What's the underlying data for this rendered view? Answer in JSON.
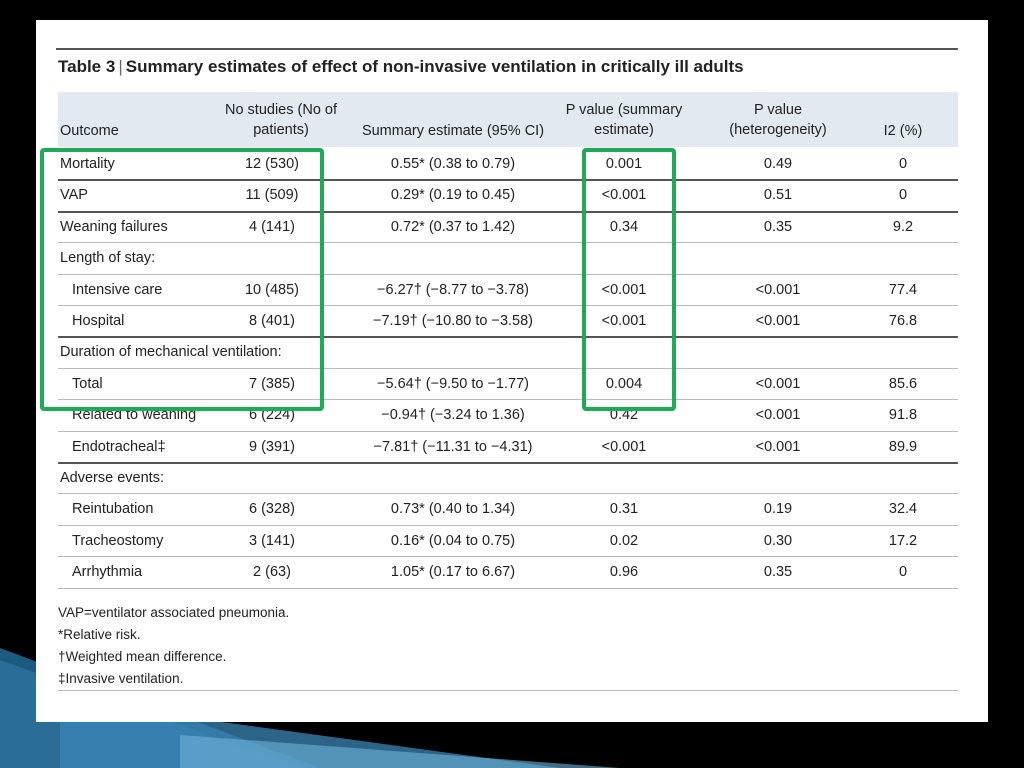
{
  "colors": {
    "background": "#000000",
    "card": "#ffffff",
    "header_fill": "#e3e9f0",
    "highlight": "#1faa55",
    "deco_blue": "#2a6d97"
  },
  "table": {
    "label": "Table 3",
    "separator": "|",
    "title": "Summary estimates of effect of non-invasive ventilation in critically ill adults",
    "headers": {
      "outcome": "Outcome",
      "studies_line1": "No studies (No of",
      "studies_line2": "patients)",
      "estimate": "Summary estimate (95% CI)",
      "pvalue_line1": "P value (summary",
      "pvalue_line2": "estimate)",
      "het_line1": "P value",
      "het_line2": "(heterogeneity)",
      "i2": "I2 (%)"
    },
    "rows": [
      {
        "outcome": "Mortality",
        "studies": "12 (530)",
        "estimate": "0.55* (0.38 to 0.79)",
        "p": "0.001",
        "het": "0.49",
        "i2": "0"
      },
      {
        "outcome": "VAP",
        "studies": "11 (509)",
        "estimate": "0.29* (0.19 to 0.45)",
        "p": "<0.001",
        "het": "0.51",
        "i2": "0"
      },
      {
        "outcome": "Weaning failures",
        "studies": "4 (141)",
        "estimate": "0.72* (0.37 to 1.42)",
        "p": "0.34",
        "het": "0.35",
        "i2": "9.2"
      },
      {
        "outcome": "Length of stay:",
        "studies": "",
        "estimate": "",
        "p": "",
        "het": "",
        "i2": ""
      },
      {
        "outcome": "Intensive care",
        "studies": "10 (485)",
        "estimate": "−6.27† (−8.77 to −3.78)",
        "p": "<0.001",
        "het": "<0.001",
        "i2": "77.4"
      },
      {
        "outcome": "Hospital",
        "studies": "8 (401)",
        "estimate": "−7.19† (−10.80 to −3.58)",
        "p": "<0.001",
        "het": "<0.001",
        "i2": "76.8"
      },
      {
        "outcome": "Duration of mechanical ventilation:",
        "studies": "",
        "estimate": "",
        "p": "",
        "het": "",
        "i2": ""
      },
      {
        "outcome": "Total",
        "studies": "7 (385)",
        "estimate": "−5.64† (−9.50 to −1.77)",
        "p": "0.004",
        "het": "<0.001",
        "i2": "85.6"
      },
      {
        "outcome": "Related to weaning",
        "studies": "6 (224)",
        "estimate": "−0.94† (−3.24 to 1.36)",
        "p": "0.42",
        "het": "<0.001",
        "i2": "91.8"
      },
      {
        "outcome": "Endotracheal‡",
        "studies": "9 (391)",
        "estimate": "−7.81† (−11.31 to −4.31)",
        "p": "<0.001",
        "het": "<0.001",
        "i2": "89.9"
      },
      {
        "outcome": "Adverse events:",
        "studies": "",
        "estimate": "",
        "p": "",
        "het": "",
        "i2": ""
      },
      {
        "outcome": "Reintubation",
        "studies": "6 (328)",
        "estimate": "0.73* (0.40 to 1.34)",
        "p": "0.31",
        "het": "0.19",
        "i2": "32.4"
      },
      {
        "outcome": "Tracheostomy",
        "studies": "3 (141)",
        "estimate": "0.16* (0.04 to 0.75)",
        "p": "0.02",
        "het": "0.30",
        "i2": "17.2"
      },
      {
        "outcome": "Arrhythmia",
        "studies": "2 (63)",
        "estimate": "1.05* (0.17 to 6.67)",
        "p": "0.96",
        "het": "0.35",
        "i2": "0"
      }
    ],
    "footnotes": [
      "VAP=ventilator associated pneumonia.",
      "*Relative risk.",
      "†Weighted mean difference.",
      "‡Invasive ventilation."
    ]
  }
}
